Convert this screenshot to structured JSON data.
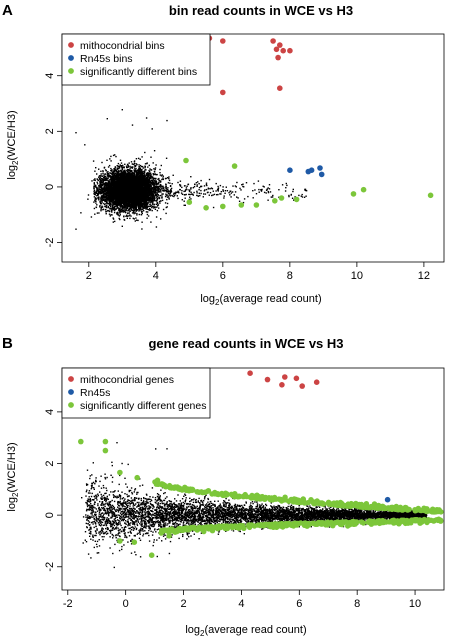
{
  "chart_data": [
    {
      "panel": "A",
      "type": "scatter",
      "title": "bin read counts in WCE vs H3",
      "xlabel_base": "log",
      "xlabel_sub": "2",
      "xlabel_rest": "(average read count)",
      "ylabel_base": "log",
      "ylabel_sub": "2",
      "ylabel_rest": "(WCE/H3)",
      "xlim": [
        1.2,
        12.6
      ],
      "ylim": [
        -2.7,
        5.5
      ],
      "x_ticks": [
        2,
        4,
        6,
        8,
        10,
        12
      ],
      "y_ticks": [
        -2,
        0,
        2,
        4
      ],
      "grid": false,
      "legend_position": "top-left",
      "legend": [
        {
          "label": "mithocondrial bins",
          "color": "#cc4444"
        },
        {
          "label": "Rn45s bins",
          "color": "#1f5aa6"
        },
        {
          "label": "significantly different bins",
          "color": "#7cc63a"
        }
      ],
      "background_cloud": {
        "color": "#000000",
        "description": "dense cloud of bins",
        "center": [
          3.2,
          -0.1
        ],
        "spread": [
          0.55,
          0.55
        ],
        "count": 7000
      },
      "series": [
        {
          "name": "mithocondrial bins",
          "color": "#cc4444",
          "points": [
            [
              5.6,
              5.35
            ],
            [
              6.0,
              5.25
            ],
            [
              7.5,
              5.25
            ],
            [
              7.7,
              5.1
            ],
            [
              7.6,
              4.95
            ],
            [
              7.8,
              4.9
            ],
            [
              8.0,
              4.9
            ],
            [
              7.65,
              4.65
            ],
            [
              6.0,
              3.4
            ],
            [
              7.7,
              3.55
            ]
          ]
        },
        {
          "name": "Rn45s bins",
          "color": "#1f5aa6",
          "points": [
            [
              8.0,
              0.6
            ],
            [
              8.55,
              0.55
            ],
            [
              8.65,
              0.6
            ],
            [
              8.95,
              0.45
            ],
            [
              8.9,
              0.68
            ]
          ]
        },
        {
          "name": "significantly different bins",
          "color": "#7cc63a",
          "points": [
            [
              4.9,
              0.95
            ],
            [
              6.35,
              0.75
            ],
            [
              5.0,
              -0.55
            ],
            [
              5.5,
              -0.75
            ],
            [
              6.0,
              -0.7
            ],
            [
              6.55,
              -0.65
            ],
            [
              7.0,
              -0.65
            ],
            [
              7.55,
              -0.5
            ],
            [
              7.75,
              -0.4
            ],
            [
              8.2,
              -0.45
            ],
            [
              9.9,
              -0.25
            ],
            [
              10.2,
              -0.1
            ],
            [
              12.2,
              -0.3
            ]
          ]
        }
      ]
    },
    {
      "panel": "B",
      "type": "scatter",
      "title": "gene read counts in WCE vs H3",
      "xlabel_base": "log",
      "xlabel_sub": "2",
      "xlabel_rest": "(average read count)",
      "ylabel_base": "log",
      "ylabel_sub": "2",
      "ylabel_rest": "(WCE/H3)",
      "xlim": [
        -2.2,
        11.0
      ],
      "ylim": [
        -2.9,
        5.7
      ],
      "x_ticks": [
        -2,
        0,
        2,
        4,
        6,
        8,
        10
      ],
      "y_ticks": [
        -2,
        0,
        2,
        4
      ],
      "grid": false,
      "legend_position": "top-left",
      "legend": [
        {
          "label": "mithocondrial genes",
          "color": "#cc4444"
        },
        {
          "label": "Rn45s",
          "color": "#1f5aa6"
        },
        {
          "label": "significantly different genes",
          "color": "#7cc63a"
        }
      ],
      "background_cloud": {
        "color": "#000000",
        "description": "funnel-shaped cloud of genes",
        "x_range": [
          -1.5,
          10.5
        ],
        "count": 6500
      },
      "series": [
        {
          "name": "mithocondrial genes",
          "color": "#cc4444",
          "points": [
            [
              4.3,
              5.5
            ],
            [
              4.9,
              5.25
            ],
            [
              5.4,
              5.05
            ],
            [
              5.5,
              5.35
            ],
            [
              5.9,
              5.3
            ],
            [
              6.1,
              5.0
            ],
            [
              6.6,
              5.15
            ]
          ]
        },
        {
          "name": "Rn45s",
          "color": "#1f5aa6",
          "points": [
            [
              9.05,
              0.6
            ]
          ]
        },
        {
          "name": "significantly different genes",
          "color": "#7cc63a",
          "points": [
            [
              -1.55,
              2.85
            ],
            [
              -0.7,
              2.85
            ],
            [
              -0.7,
              2.5
            ],
            [
              -0.2,
              1.65
            ],
            [
              0.4,
              1.45
            ],
            [
              1.1,
              1.35
            ],
            [
              0.9,
              -1.55
            ],
            [
              -0.2,
              -1.0
            ],
            [
              0.3,
              -1.05
            ],
            [
              1.5,
              -0.8
            ]
          ],
          "bands": [
            {
              "x_range": [
                1.0,
                10.9
              ],
              "side": "upper",
              "from": 1.25,
              "to": 0.1
            },
            {
              "x_range": [
                1.2,
                10.9
              ],
              "side": "lower",
              "from": -0.6,
              "to": -0.15
            }
          ]
        }
      ]
    }
  ]
}
